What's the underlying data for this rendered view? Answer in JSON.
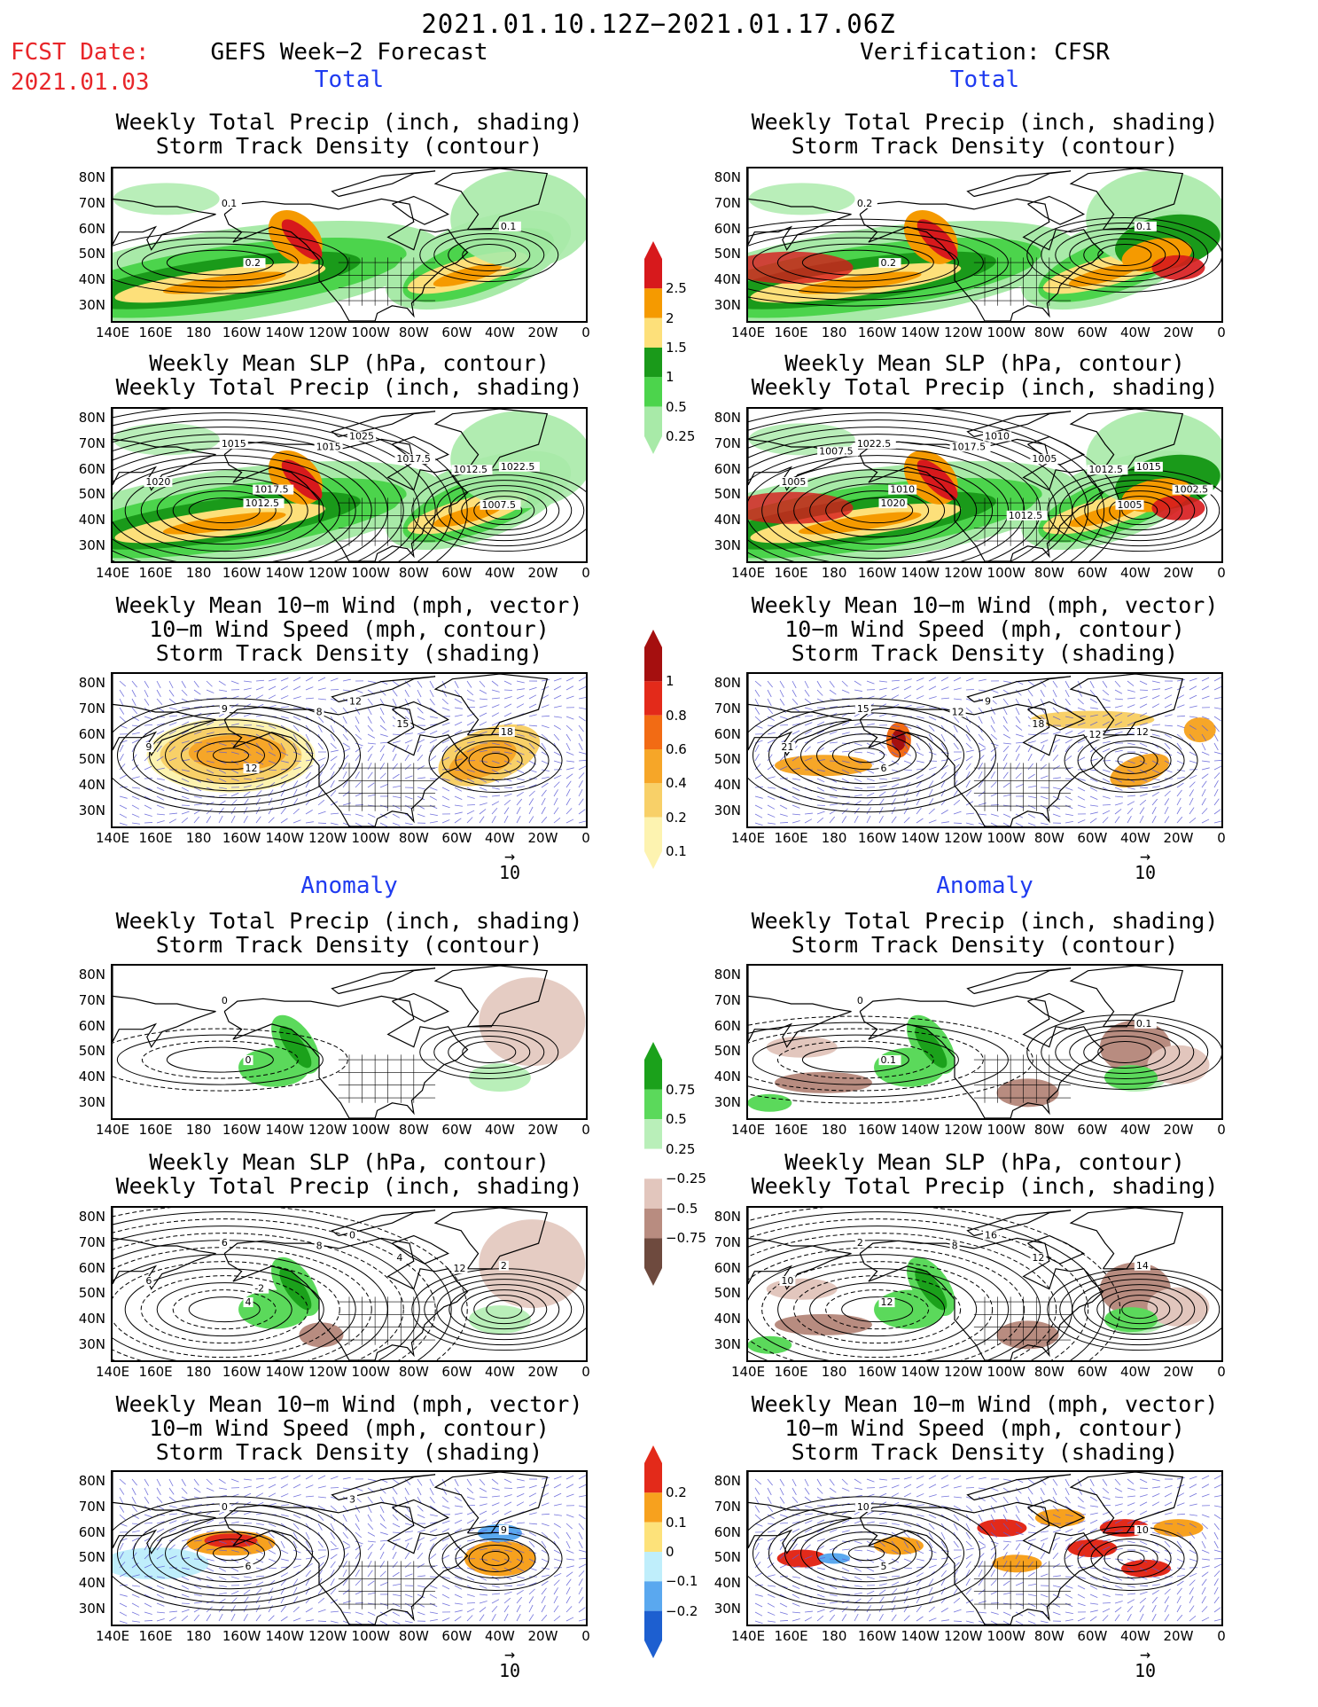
{
  "header": {
    "title": "2021.01.10.12Z−2021.01.17.06Z",
    "fcst_label": "FCST Date:",
    "fcst_date": "2021.01.03",
    "left_column": "GEFS Week−2 Forecast",
    "right_column": "Verification: CFSR",
    "total_label": "Total",
    "anomaly_label": "Anomaly"
  },
  "colors": {
    "header_red": "#e8262a",
    "section_blue": "#1f3bf0",
    "land_outline": "#000000",
    "wind_vector": "#5b5bd6"
  },
  "panel_titles": {
    "precip_track": [
      "Weekly Total Precip (inch, shading)",
      "Storm Track Density (contour)"
    ],
    "slp_precip": [
      "Weekly Mean SLP (hPa, contour)",
      "Weekly Total Precip (inch, shading)"
    ],
    "wind_track": [
      "Weekly Mean 10−m Wind (mph, vector)",
      "10−m Wind Speed (mph, contour)",
      "Storm Track Density (shading)"
    ]
  },
  "axes": {
    "x_ticks": [
      "140E",
      "160E",
      "180",
      "160W",
      "140W",
      "120W",
      "100W",
      "80W",
      "60W",
      "40W",
      "20W",
      "0"
    ],
    "y_ticks": [
      "80N",
      "70N",
      "60N",
      "50N",
      "40N",
      "30N"
    ],
    "ref_vector": "10"
  },
  "chart_data": [
    {
      "type": "heatmap",
      "id": "total-precip-fcst",
      "title": "Weekly Total Precip (inch, shading)",
      "subtitle": "Storm Track Density (contour)",
      "lon_range": [
        140,
        360
      ],
      "lat_range": [
        24,
        84
      ],
      "contour_labels": [
        "0.1",
        "0.2",
        "0.1"
      ]
    },
    {
      "type": "heatmap",
      "id": "total-precip-verif",
      "title": "Weekly Total Precip (inch, shading)",
      "subtitle": "Storm Track Density (contour)",
      "lon_range": [
        140,
        360
      ],
      "lat_range": [
        24,
        84
      ],
      "contour_labels": [
        "0.2",
        "0.2",
        "0.1"
      ]
    },
    {
      "type": "heatmap",
      "id": "total-slp-fcst",
      "title": "Weekly Mean SLP (hPa, contour)",
      "subtitle": "Weekly Total Precip (inch, shading)",
      "contour_labels": [
        "1015",
        "1012.5",
        "1022.5",
        "1025",
        "1017.5",
        "1020",
        "1015",
        "1012.5",
        "1017.5",
        "1007.5"
      ]
    },
    {
      "type": "heatmap",
      "id": "total-slp-verif",
      "title": "Weekly Mean SLP (hPa, contour)",
      "subtitle": "Weekly Total Precip (inch, shading)",
      "contour_labels": [
        "1022.5",
        "1020",
        "1015",
        "1010",
        "1005",
        "1005",
        "1017.5",
        "1012.5",
        "1010",
        "1005",
        "1012.5",
        "1007.5",
        "1002.5"
      ]
    },
    {
      "type": "heatmap",
      "id": "total-wind-fcst",
      "title": "Weekly Mean 10−m Wind (mph, vector)",
      "subtitle": "10−m Wind Speed (mph, contour)",
      "contour_labels": [
        "9",
        "12",
        "18",
        "12",
        "15",
        "9",
        "8"
      ]
    },
    {
      "type": "heatmap",
      "id": "total-wind-verif",
      "title": "Weekly Mean 10−m Wind (mph, vector)",
      "subtitle": "10−m Wind Speed (mph, contour)",
      "contour_labels": [
        "15",
        "6",
        "12",
        "9",
        "18",
        "21",
        "12",
        "12"
      ]
    },
    {
      "type": "heatmap",
      "id": "anom-precip-fcst",
      "title": "Weekly Total Precip (inch, shading)",
      "subtitle": "Storm Track Density (contour)",
      "contour_labels": [
        "0",
        "0"
      ]
    },
    {
      "type": "heatmap",
      "id": "anom-precip-verif",
      "title": "Weekly Total Precip (inch, shading)",
      "subtitle": "Storm Track Density (contour)",
      "contour_labels": [
        "0",
        "0.1",
        "0.1"
      ]
    },
    {
      "type": "heatmap",
      "id": "anom-slp-fcst",
      "title": "Weekly Mean SLP (hPa, contour)",
      "subtitle": "Weekly Total Precip (inch, shading)",
      "contour_labels": [
        "6",
        "4",
        "2",
        "0",
        "4",
        "6",
        "8",
        "12",
        "-2"
      ]
    },
    {
      "type": "heatmap",
      "id": "anom-slp-verif",
      "title": "Weekly Mean SLP (hPa, contour)",
      "subtitle": "Weekly Total Precip (inch, shading)",
      "contour_labels": [
        "2",
        "12",
        "14",
        "16",
        "12",
        "10",
        "8"
      ]
    },
    {
      "type": "heatmap",
      "id": "anom-wind-fcst",
      "title": "Weekly Mean 10−m Wind (mph, vector)",
      "subtitle": "10−m Wind Speed (mph, contour)",
      "contour_labels": [
        "0",
        "6",
        "9",
        "3"
      ]
    },
    {
      "type": "heatmap",
      "id": "anom-wind-verif",
      "title": "Weekly Mean 10−m Wind (mph, vector)",
      "subtitle": "10−m Wind Speed (mph, contour)",
      "contour_labels": [
        "10",
        "5",
        "10"
      ]
    }
  ],
  "colorbars": {
    "precip_total": {
      "labels": [
        "2.5",
        "2",
        "1.5",
        "1",
        "0.5",
        "0.25"
      ],
      "colors": [
        "#d7191c",
        "#f59a00",
        "#fde07a",
        "#1a9a1a",
        "#4cd44c",
        "#a8eaa8"
      ]
    },
    "track_total": {
      "labels": [
        "1",
        "0.8",
        "0.6",
        "0.4",
        "0.2",
        "0.1"
      ],
      "colors": [
        "#a50f0f",
        "#e32a1a",
        "#f26b14",
        "#f6a628",
        "#f8d068",
        "#fdf3b0"
      ]
    },
    "precip_anom": {
      "labels": [
        "0.75",
        "0.5",
        "0.25",
        "−0.25",
        "−0.5",
        "−0.75"
      ],
      "colors": [
        "#1ba11b",
        "#5bd95b",
        "#b9efb9",
        "#ffffff",
        "#e2c6bd",
        "#b88c80",
        "#6e4a3e"
      ]
    },
    "track_anom": {
      "labels": [
        "0.2",
        "0.1",
        "0",
        "−0.1",
        "−0.2"
      ],
      "colors": [
        "#e32a1a",
        "#f7a11e",
        "#fde27a",
        "#bfeefb",
        "#5aa8ef",
        "#1d5fd0"
      ]
    }
  }
}
